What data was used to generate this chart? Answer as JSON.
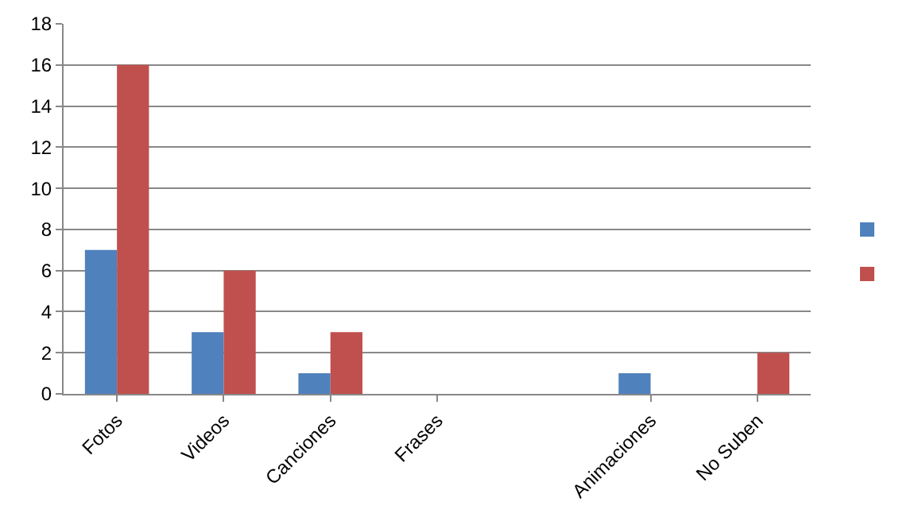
{
  "chart_data": {
    "type": "bar",
    "categories": [
      "Fotos",
      "Videos",
      "Canciones",
      "Frases",
      null,
      "Animaciones",
      "No Suben"
    ],
    "series": [
      {
        "color": "#4f81bd",
        "values": [
          7,
          3,
          1,
          0,
          0,
          1,
          0
        ]
      },
      {
        "color": "#c0504d",
        "values": [
          16,
          6,
          3,
          0,
          0,
          0,
          2
        ]
      }
    ],
    "ylim": [
      0,
      18
    ],
    "yticks": [
      0,
      2,
      4,
      6,
      8,
      10,
      12,
      14,
      16,
      18
    ],
    "grid": "y"
  }
}
